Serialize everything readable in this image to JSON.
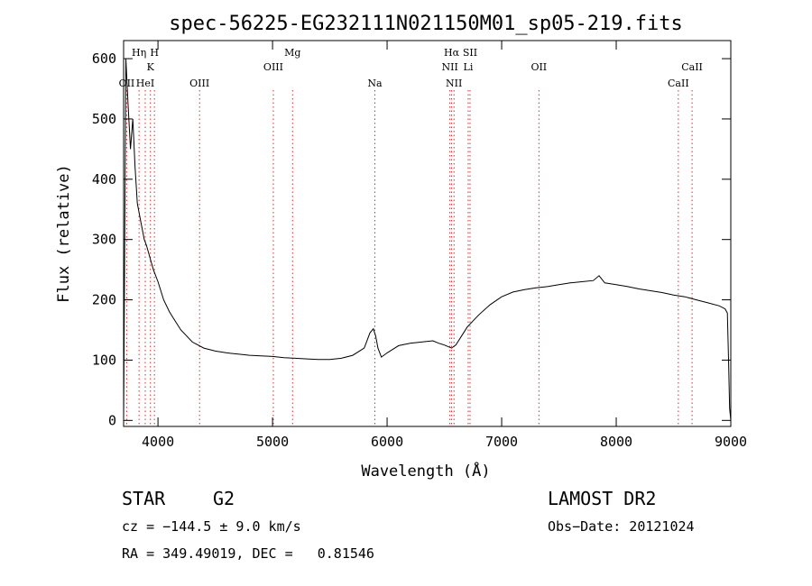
{
  "chart_data": {
    "type": "line",
    "title": "spec-56225-EG232111N021150M01_sp05-219.fits",
    "xlabel": "Wavelength (Å)",
    "ylabel": "Flux (relative)",
    "xlim": [
      3700,
      9000
    ],
    "ylim": [
      -10,
      630
    ],
    "xticks": [
      4000,
      5000,
      6000,
      7000,
      8000,
      9000
    ],
    "yticks": [
      0,
      100,
      200,
      300,
      400,
      500,
      600
    ],
    "grid": false,
    "series": [
      {
        "x": [
          3700,
          3720,
          3740,
          3760,
          3780,
          3800,
          3820,
          3850,
          3880,
          3900,
          3930,
          3960,
          4000,
          4050,
          4100,
          4150,
          4200,
          4300,
          4400,
          4500,
          4600,
          4700,
          4800,
          4900,
          5000,
          5100,
          5200,
          5300,
          5400,
          5500,
          5600,
          5700,
          5800,
          5850,
          5880,
          5900,
          5920,
          5950,
          6000,
          6050,
          6100,
          6200,
          6300,
          6400,
          6450,
          6500,
          6563,
          6600,
          6650,
          6700,
          6800,
          6900,
          7000,
          7100,
          7200,
          7300,
          7400,
          7500,
          7600,
          7700,
          7800,
          7850,
          7900,
          8000,
          8100,
          8200,
          8300,
          8400,
          8500,
          8600,
          8700,
          8800,
          8900,
          8950,
          8970,
          8980,
          8990,
          9000
        ],
        "y": [
          0,
          600,
          520,
          450,
          500,
          420,
          360,
          330,
          300,
          290,
          270,
          250,
          230,
          200,
          180,
          165,
          150,
          130,
          120,
          115,
          112,
          110,
          108,
          107,
          106,
          104,
          103,
          102,
          101,
          101,
          103,
          108,
          120,
          145,
          152,
          140,
          120,
          105,
          112,
          118,
          124,
          128,
          130,
          132,
          128,
          125,
          120,
          125,
          140,
          155,
          175,
          192,
          205,
          213,
          217,
          220,
          222,
          225,
          228,
          230,
          232,
          240,
          228,
          225,
          222,
          218,
          215,
          212,
          208,
          205,
          200,
          195,
          190,
          185,
          178,
          100,
          20,
          0
        ]
      }
    ],
    "lines": [
      {
        "label": "OII",
        "x": 3727,
        "row": 3
      },
      {
        "label": "Hη",
        "x": 3835,
        "row": 1
      },
      {
        "label": "HeI",
        "x": 3889,
        "row": 3
      },
      {
        "label": "K",
        "x": 3934,
        "row": 2
      },
      {
        "label": "H",
        "x": 3969,
        "row": 1
      },
      {
        "label": "OIII",
        "x": 4363,
        "row": 3
      },
      {
        "label": "OIII",
        "x": 5007,
        "row": 2
      },
      {
        "label": "Mg",
        "x": 5175,
        "row": 1
      },
      {
        "label": "Na",
        "x": 5893,
        "row": 3
      },
      {
        "label": "Hα",
        "x": 6563,
        "row": 1
      },
      {
        "label": "NII",
        "x": 6548,
        "row": 2
      },
      {
        "label": "NII",
        "x": 6584,
        "row": 3
      },
      {
        "label": "Li",
        "x": 6708,
        "row": 2
      },
      {
        "label": "OII",
        "x": 7325,
        "row": 2
      },
      {
        "label": "SII",
        "x": 6724,
        "row": 1
      },
      {
        "label": "CaII",
        "x": 8542,
        "row": 3
      },
      {
        "label": "CaII",
        "x": 8662,
        "row": 2
      }
    ]
  },
  "info": {
    "class_label": "STAR",
    "subclass": "G2",
    "survey": "LAMOST DR2",
    "cz": "cz = −144.5 ± 9.0 km/s",
    "obs_date": "Obs−Date: 20121024",
    "coords": "RA = 349.49019, DEC =   0.81546"
  }
}
